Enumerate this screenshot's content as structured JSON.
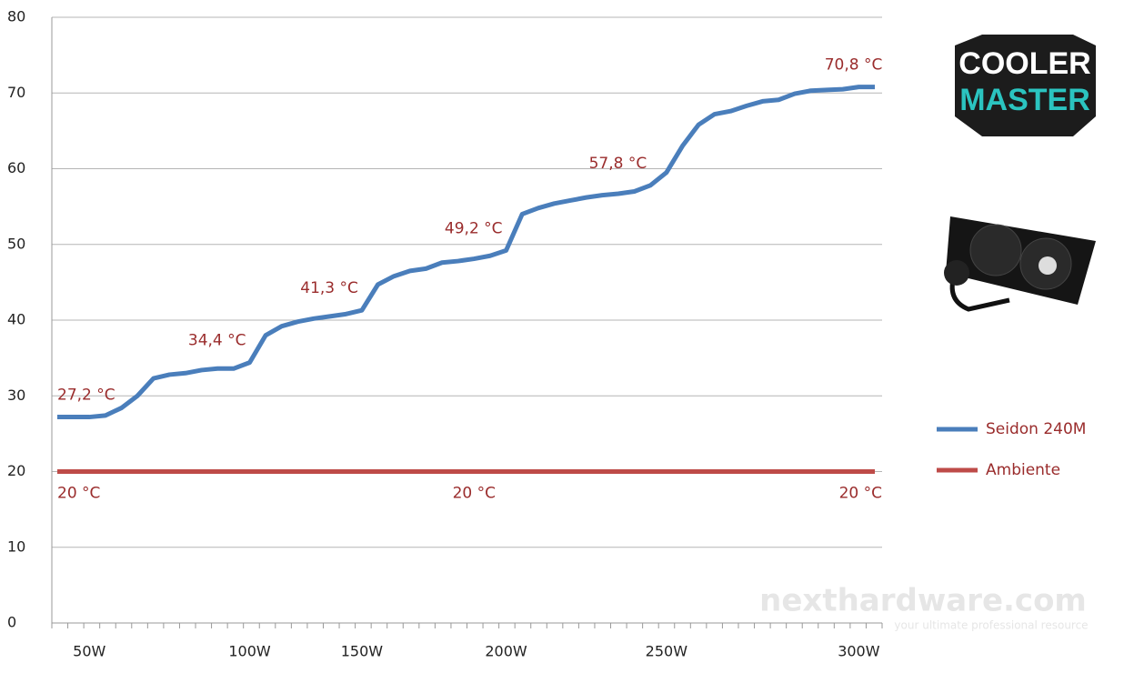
{
  "chart_data": {
    "type": "line",
    "categories": [
      null,
      null,
      "50W",
      null,
      null,
      null,
      null,
      null,
      null,
      null,
      null,
      null,
      "100W",
      null,
      null,
      null,
      null,
      null,
      null,
      "150W",
      null,
      null,
      null,
      null,
      null,
      null,
      null,
      null,
      "200W",
      null,
      null,
      null,
      null,
      null,
      null,
      null,
      null,
      null,
      "250W",
      null,
      null,
      null,
      null,
      null,
      null,
      null,
      null,
      null,
      null,
      null,
      "300W",
      null
    ],
    "series": [
      {
        "name": "Seidon 240M",
        "color": "#4a7ebb",
        "values": [
          27.2,
          27.2,
          27.2,
          27.4,
          28.4,
          30,
          32.3,
          32.8,
          33,
          33.4,
          33.6,
          33.6,
          34.4,
          38,
          39.2,
          39.8,
          40.2,
          40.5,
          40.8,
          41.3,
          44.7,
          45.8,
          46.5,
          46.8,
          47.6,
          47.8,
          48.1,
          48.5,
          49.2,
          54,
          54.8,
          55.4,
          55.8,
          56.2,
          56.5,
          56.7,
          57,
          57.8,
          59.5,
          63,
          65.8,
          67.2,
          67.6,
          68.3,
          68.9,
          69.1,
          69.9,
          70.3,
          70.4,
          70.5,
          70.8,
          70.8
        ],
        "value_labels": [
          "27,2 °C",
          null,
          null,
          null,
          null,
          null,
          null,
          null,
          null,
          null,
          null,
          null,
          "34,4 °C",
          null,
          null,
          null,
          null,
          null,
          null,
          "41,3 °C",
          null,
          null,
          null,
          null,
          null,
          null,
          null,
          null,
          "49,2 °C",
          null,
          null,
          null,
          null,
          null,
          null,
          null,
          null,
          "57,8 °C",
          null,
          null,
          null,
          null,
          null,
          null,
          null,
          null,
          null,
          null,
          null,
          null,
          "70,8 °C",
          null
        ]
      },
      {
        "name": "Ambiente",
        "color": "#be4b48",
        "values": [
          20,
          20,
          20,
          20,
          20,
          20,
          20,
          20,
          20,
          20,
          20,
          20,
          20,
          20,
          20,
          20,
          20,
          20,
          20,
          20,
          20,
          20,
          20,
          20,
          20,
          20,
          20,
          20,
          20,
          20,
          20,
          20,
          20,
          20,
          20,
          20,
          20,
          20,
          20,
          20,
          20,
          20,
          20,
          20,
          20,
          20,
          20,
          20,
          20,
          20,
          20,
          20
        ],
        "value_labels": [
          "20 °C",
          null,
          null,
          null,
          null,
          null,
          null,
          null,
          null,
          null,
          null,
          null,
          null,
          null,
          null,
          null,
          null,
          null,
          null,
          null,
          null,
          null,
          null,
          null,
          null,
          null,
          "20 °C",
          null,
          null,
          null,
          null,
          null,
          null,
          null,
          null,
          null,
          null,
          null,
          null,
          null,
          null,
          null,
          null,
          null,
          null,
          null,
          null,
          null,
          null,
          null,
          null,
          "20 °C"
        ]
      }
    ],
    "ylim": [
      0,
      80
    ],
    "yticks": [
      0,
      10,
      20,
      30,
      40,
      50,
      60,
      70,
      80
    ],
    "grid": true,
    "legend": "right",
    "logo": [
      "COOLER",
      "MASTER"
    ],
    "watermark": [
      "nexthardware.com",
      "your ultimate professional resource"
    ]
  }
}
